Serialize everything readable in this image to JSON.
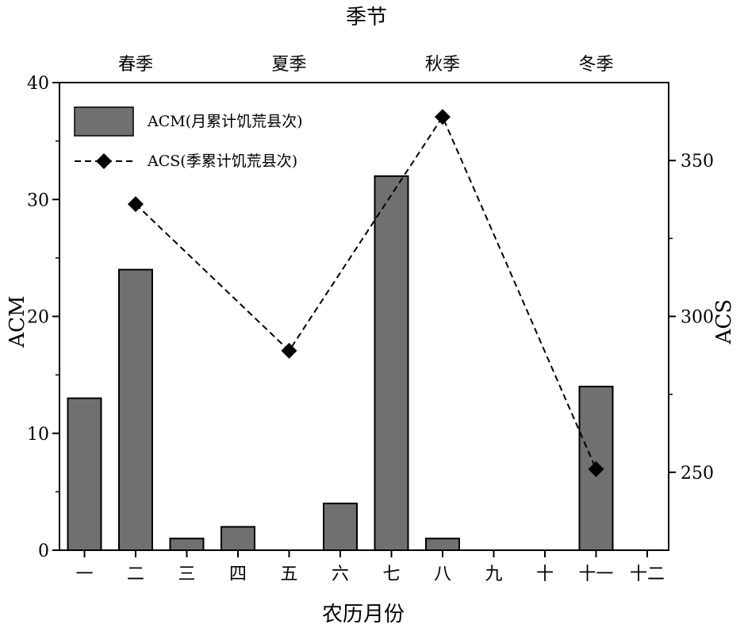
{
  "chart_data": {
    "type": "bar+line",
    "top_axis": {
      "title": "季节",
      "labels": [
        "春季",
        "夏季",
        "秋季",
        "冬季"
      ]
    },
    "categories": [
      "一",
      "二",
      "三",
      "四",
      "五",
      "六",
      "七",
      "八",
      "九",
      "十",
      "十一",
      "十二"
    ],
    "xlabel": "农历月份",
    "left_axis": {
      "label": "ACM",
      "ylim": [
        0,
        40
      ],
      "ticks": [
        "0",
        "10",
        "20",
        "30",
        "40"
      ]
    },
    "right_axis": {
      "label": "ACS",
      "ylim": [
        225,
        375
      ],
      "ticks": [
        "250",
        "300",
        "350"
      ]
    },
    "series": [
      {
        "name": "ACM(月累计饥荒县次)",
        "type": "bar",
        "axis": "left",
        "color": "#707070",
        "values": [
          13,
          24,
          1,
          2,
          0,
          4,
          32,
          1,
          0,
          0,
          14,
          0
        ]
      },
      {
        "name": "ACS(季累计饥荒县次)",
        "type": "line",
        "axis": "right",
        "style": "dashed",
        "marker": "diamond",
        "color": "#000000",
        "points": [
          {
            "month": "二",
            "value": 336
          },
          {
            "month": "五",
            "value": 289
          },
          {
            "month": "八",
            "value": 364
          },
          {
            "month": "十一",
            "value": 251
          }
        ]
      }
    ],
    "legend_position": "top-left",
    "grid": false
  }
}
